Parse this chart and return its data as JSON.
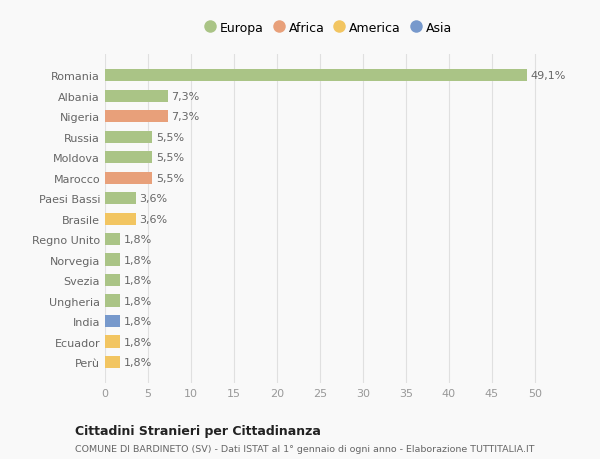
{
  "categories": [
    "Romania",
    "Albania",
    "Nigeria",
    "Russia",
    "Moldova",
    "Marocco",
    "Paesi Bassi",
    "Brasile",
    "Regno Unito",
    "Norvegia",
    "Svezia",
    "Ungheria",
    "India",
    "Ecuador",
    "Perù"
  ],
  "values": [
    49.1,
    7.3,
    7.3,
    5.5,
    5.5,
    5.5,
    3.6,
    3.6,
    1.8,
    1.8,
    1.8,
    1.8,
    1.8,
    1.8,
    1.8
  ],
  "colors": [
    "#aac486",
    "#aac486",
    "#e8a07a",
    "#aac486",
    "#aac486",
    "#e8a07a",
    "#aac486",
    "#f2c561",
    "#aac486",
    "#aac486",
    "#aac486",
    "#aac486",
    "#7799cc",
    "#f2c561",
    "#f2c561"
  ],
  "labels": [
    "49,1%",
    "7,3%",
    "7,3%",
    "5,5%",
    "5,5%",
    "5,5%",
    "3,6%",
    "3,6%",
    "1,8%",
    "1,8%",
    "1,8%",
    "1,8%",
    "1,8%",
    "1,8%",
    "1,8%"
  ],
  "legend": [
    {
      "label": "Europa",
      "color": "#aac486"
    },
    {
      "label": "Africa",
      "color": "#e8a07a"
    },
    {
      "label": "America",
      "color": "#f2c561"
    },
    {
      "label": "Asia",
      "color": "#7799cc"
    }
  ],
  "xlim": [
    0,
    52
  ],
  "xticks": [
    0,
    5,
    10,
    15,
    20,
    25,
    30,
    35,
    40,
    45,
    50
  ],
  "title": "Cittadini Stranieri per Cittadinanza",
  "subtitle": "COMUNE DI BARDINETO (SV) - Dati ISTAT al 1° gennaio di ogni anno - Elaborazione TUTTITALIA.IT",
  "background_color": "#f9f9f9",
  "grid_color": "#e0e0e0",
  "bar_height": 0.6,
  "label_fontsize": 8,
  "ytick_fontsize": 8,
  "xtick_fontsize": 8
}
